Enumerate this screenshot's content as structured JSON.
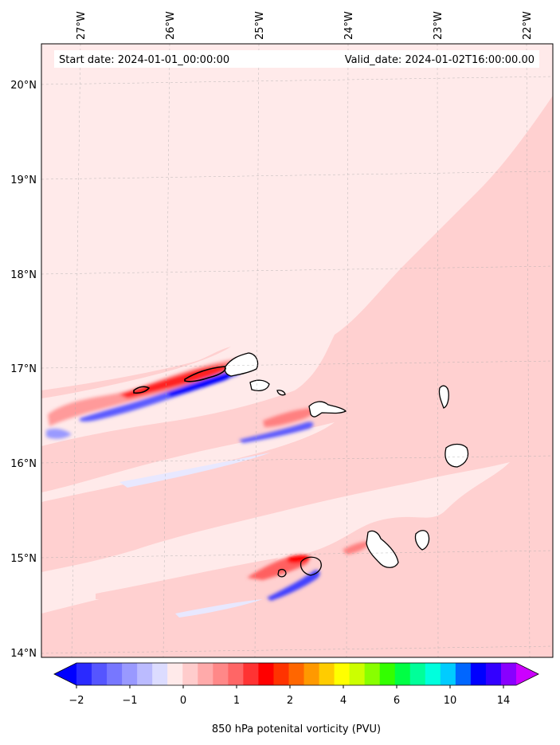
{
  "header": {
    "start_date": "Start date: 2024-01-01_00:00:00",
    "valid_date": "Valid_date: 2024-01-02T16:00:00.00"
  },
  "axes": {
    "lon_labels": [
      "27°W",
      "26°W",
      "25°W",
      "24°W",
      "23°W",
      "22°W"
    ],
    "lat_labels": [
      "20°N",
      "19°N",
      "18°N",
      "17°N",
      "16°N",
      "15°N",
      "14°N"
    ]
  },
  "colorbar": {
    "label": "850 hPa potenital vorticity (PVU)",
    "tick_labels": [
      "−2",
      "−1",
      "0",
      "1",
      "2",
      "4",
      "6",
      "10",
      "14"
    ],
    "colors": [
      "#0000ff",
      "#2a2aff",
      "#5555ff",
      "#7777ff",
      "#9999ff",
      "#bbbbff",
      "#dcdcff",
      "#ffeaea",
      "#ffcccc",
      "#ffaaaa",
      "#ff8888",
      "#ff6666",
      "#ff3333",
      "#ff0000",
      "#ff3300",
      "#ff6600",
      "#ff9900",
      "#ffcc00",
      "#ffff00",
      "#ccff00",
      "#88ff00",
      "#33ff00",
      "#00ff44",
      "#00ff99",
      "#00ffdd",
      "#00ccff",
      "#0066ff",
      "#0000ff",
      "#3300ff",
      "#8800ff",
      "#cc00ff"
    ]
  },
  "colors": {
    "background_field": "#ffeaea",
    "light_positive": "#ffd0d0",
    "positive": "#ff7777",
    "strong_positive": "#ff0000",
    "negative": "#6666ff",
    "strong_negative": "#0000ff",
    "coastline": "#000000"
  }
}
